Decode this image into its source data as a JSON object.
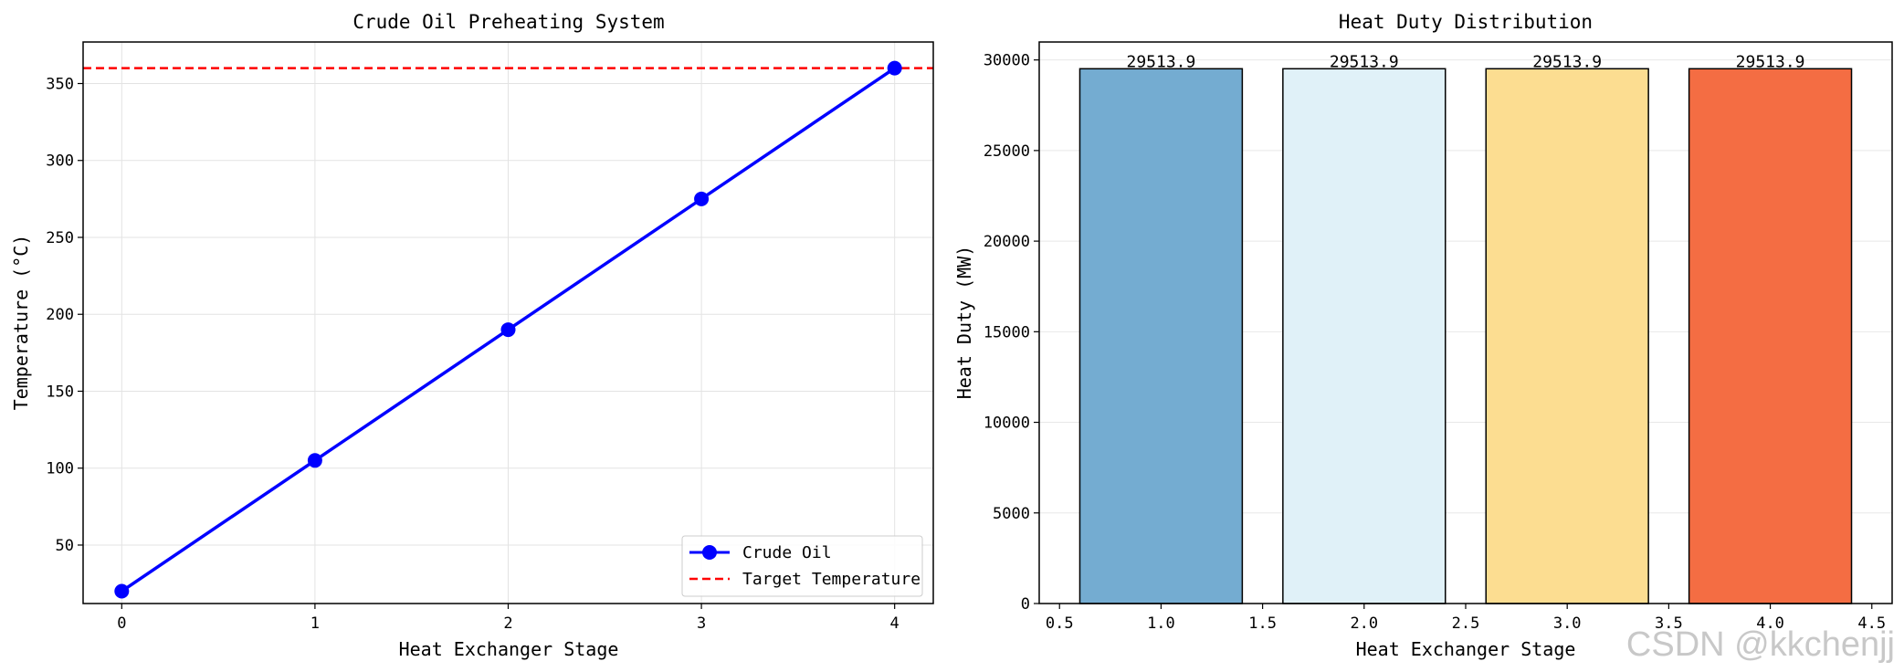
{
  "chart_data": [
    {
      "type": "line",
      "title": "Crude Oil Preheating System",
      "xlabel": "Heat Exchanger Stage",
      "ylabel": "Temperature (°C)",
      "xlim": [
        -0.2,
        4.2
      ],
      "ylim": [
        12,
        377
      ],
      "xticks": [
        0,
        1,
        2,
        3,
        4
      ],
      "yticks": [
        50,
        100,
        150,
        200,
        250,
        300,
        350
      ],
      "grid": true,
      "legend_position": "bottom-right",
      "series": [
        {
          "name": "Crude Oil",
          "x": [
            0,
            1,
            2,
            3,
            4
          ],
          "y": [
            20,
            105,
            190,
            275,
            360
          ],
          "color": "#0000ff",
          "marker": "circle"
        }
      ],
      "reference_lines": [
        {
          "name": "Target Temperature",
          "y": 360,
          "color": "#ff0000",
          "style": "dashed"
        }
      ]
    },
    {
      "type": "bar",
      "title": "Heat Duty Distribution",
      "xlabel": "Heat Exchanger Stage",
      "ylabel": "Heat Duty (MW)",
      "xlim": [
        0.4,
        4.6
      ],
      "ylim": [
        0,
        30990
      ],
      "xticks": [
        0.5,
        1.0,
        1.5,
        2.0,
        2.5,
        3.0,
        3.5,
        4.0,
        4.5
      ],
      "yticks": [
        0,
        5000,
        10000,
        15000,
        20000,
        25000,
        30000
      ],
      "grid": true,
      "x": [
        1,
        2,
        3,
        4
      ],
      "values": [
        29513.9,
        29513.9,
        29513.9,
        29513.9
      ],
      "data_labels": [
        "29513.9",
        "29513.9",
        "29513.9",
        "29513.9"
      ],
      "bar_width": 0.8,
      "colors": [
        "#74acd1",
        "#e0f1f8",
        "#fcdd91",
        "#f46d43"
      ]
    }
  ],
  "watermark": "CSDN @kkchenjj"
}
